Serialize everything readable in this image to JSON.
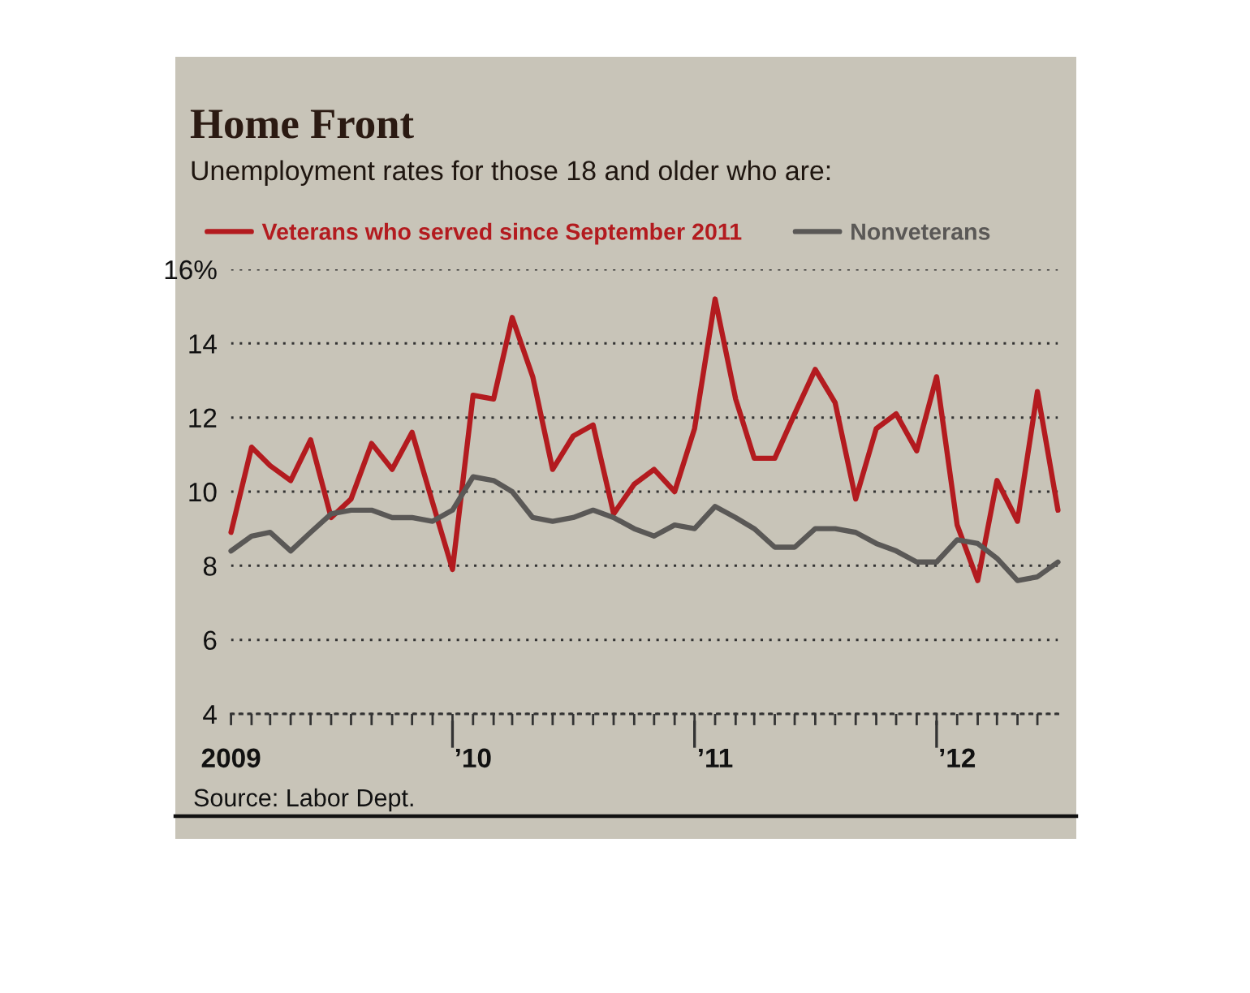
{
  "chart_data": {
    "type": "line",
    "title": "Home Front",
    "subtitle": "Unemployment rates for those 18 and older who are:",
    "x": [
      "2009-01",
      "2009-02",
      "2009-03",
      "2009-04",
      "2009-05",
      "2009-06",
      "2009-07",
      "2009-08",
      "2009-09",
      "2009-10",
      "2009-11",
      "2009-12",
      "2010-01",
      "2010-02",
      "2010-03",
      "2010-04",
      "2010-05",
      "2010-06",
      "2010-07",
      "2010-08",
      "2010-09",
      "2010-10",
      "2010-11",
      "2010-12",
      "2011-01",
      "2011-02",
      "2011-03",
      "2011-04",
      "2011-05",
      "2011-06",
      "2011-07",
      "2011-08",
      "2011-09",
      "2011-10",
      "2011-11",
      "2011-12",
      "2012-01",
      "2012-02",
      "2012-03",
      "2012-04",
      "2012-05",
      "2012-06"
    ],
    "series": [
      {
        "name": "Veterans who served since September 2011",
        "color": "#b31b1f",
        "values": [
          8.9,
          11.2,
          10.7,
          10.3,
          11.4,
          9.3,
          9.8,
          11.3,
          10.6,
          11.6,
          9.7,
          7.9,
          12.6,
          12.5,
          14.7,
          13.1,
          10.6,
          11.5,
          11.8,
          9.4,
          10.2,
          10.6,
          10.0,
          11.7,
          15.2,
          12.5,
          10.9,
          10.9,
          12.1,
          13.3,
          12.4,
          9.8,
          11.7,
          12.1,
          11.1,
          13.1,
          9.1,
          7.6,
          10.3,
          9.2,
          12.7,
          9.5
        ]
      },
      {
        "name": "Nonveterans",
        "color": "#5a5856",
        "values": [
          8.4,
          8.8,
          8.9,
          8.4,
          8.9,
          9.4,
          9.5,
          9.5,
          9.3,
          9.3,
          9.2,
          9.5,
          10.4,
          10.3,
          10.0,
          9.3,
          9.2,
          9.3,
          9.5,
          9.3,
          9.0,
          8.8,
          9.1,
          9.0,
          9.6,
          9.3,
          9.0,
          8.5,
          8.5,
          9.0,
          9.0,
          8.9,
          8.6,
          8.4,
          8.1,
          8.1,
          8.7,
          8.6,
          8.2,
          7.6,
          7.7,
          8.1
        ]
      }
    ],
    "xlim": [
      "2009-01",
      "2012-06"
    ],
    "xticks": [
      {
        "value": "2009-01",
        "label": "2009"
      },
      {
        "value": "2009-02",
        "label": null
      },
      {
        "value": "2009-03",
        "label": null
      },
      {
        "value": "2009-04",
        "label": null
      },
      {
        "value": "2009-05",
        "label": null
      },
      {
        "value": "2009-06",
        "label": null
      },
      {
        "value": "2009-07",
        "label": null
      },
      {
        "value": "2009-08",
        "label": null
      },
      {
        "value": "2009-09",
        "label": null
      },
      {
        "value": "2009-10",
        "label": null
      },
      {
        "value": "2009-11",
        "label": null
      },
      {
        "value": "2009-12",
        "label": null
      },
      {
        "value": "2010-01",
        "label": "’10"
      },
      {
        "value": "2010-02",
        "label": null
      },
      {
        "value": "2010-03",
        "label": null
      },
      {
        "value": "2010-04",
        "label": null
      },
      {
        "value": "2010-05",
        "label": null
      },
      {
        "value": "2010-06",
        "label": null
      },
      {
        "value": "2010-07",
        "label": null
      },
      {
        "value": "2010-08",
        "label": null
      },
      {
        "value": "2010-09",
        "label": null
      },
      {
        "value": "2010-10",
        "label": null
      },
      {
        "value": "2010-11",
        "label": null
      },
      {
        "value": "2010-12",
        "label": null
      },
      {
        "value": "2011-01",
        "label": "’11"
      },
      {
        "value": "2011-02",
        "label": null
      },
      {
        "value": "2011-03",
        "label": null
      },
      {
        "value": "2011-04",
        "label": null
      },
      {
        "value": "2011-05",
        "label": null
      },
      {
        "value": "2011-06",
        "label": null
      },
      {
        "value": "2011-07",
        "label": null
      },
      {
        "value": "2011-08",
        "label": null
      },
      {
        "value": "2011-09",
        "label": null
      },
      {
        "value": "2011-10",
        "label": null
      },
      {
        "value": "2011-11",
        "label": null
      },
      {
        "value": "2011-12",
        "label": null
      },
      {
        "value": "2012-01",
        "label": "’12"
      },
      {
        "value": "2012-02",
        "label": null
      },
      {
        "value": "2012-03",
        "label": null
      },
      {
        "value": "2012-04",
        "label": null
      },
      {
        "value": "2012-05",
        "label": null
      }
    ],
    "ylim": [
      4,
      16
    ],
    "yticks": [
      4,
      6,
      8,
      10,
      12,
      14,
      {
        "value": 16,
        "label": "16%"
      }
    ],
    "grid": "y",
    "legend": "top left",
    "line_style": "solid",
    "annotations": [
      "Source: Labor Dept."
    ]
  }
}
